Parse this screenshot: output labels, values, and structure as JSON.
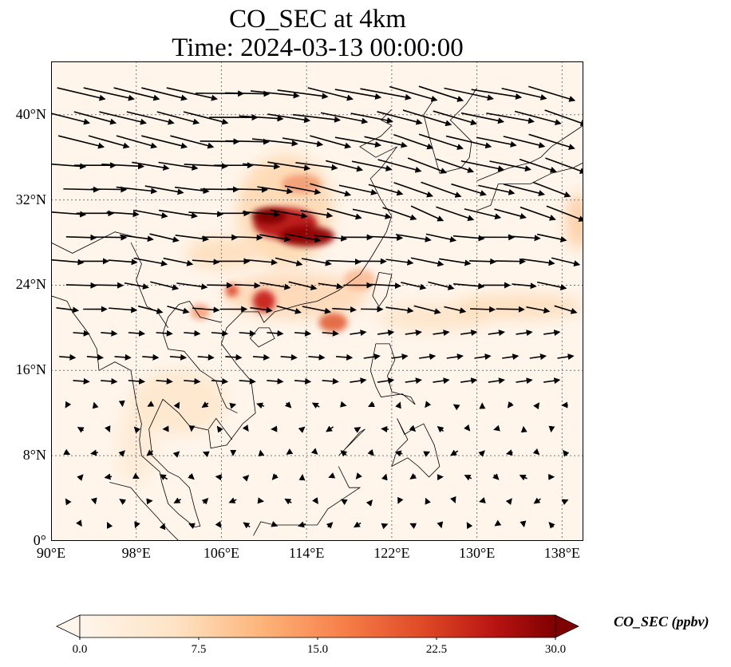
{
  "title": {
    "line1": "CO_SEC at 4km",
    "line2": "Time: 2024-03-13 00:00:00"
  },
  "map": {
    "lon_range": [
      90,
      140
    ],
    "lat_range": [
      0,
      45
    ],
    "lat_ticks": [
      {
        "v": 0,
        "label": "0°"
      },
      {
        "v": 8,
        "label": "8°N"
      },
      {
        "v": 16,
        "label": "16°N"
      },
      {
        "v": 24,
        "label": "24°N"
      },
      {
        "v": 32,
        "label": "32°N"
      },
      {
        "v": 40,
        "label": "40°N"
      }
    ],
    "lon_ticks": [
      {
        "v": 90,
        "label": "90°E"
      },
      {
        "v": 98,
        "label": "98°E"
      },
      {
        "v": 106,
        "label": "106°E"
      },
      {
        "v": 114,
        "label": "114°E"
      },
      {
        "v": 122,
        "label": "122°E"
      },
      {
        "v": 130,
        "label": "130°E"
      },
      {
        "v": 138,
        "label": "138°E"
      }
    ],
    "gridlines": "dotted",
    "coastlines": true
  },
  "colorbar": {
    "label": "CO_SEC (ppbv)",
    "range": [
      0,
      30
    ],
    "ticks": [
      "0.0",
      "7.5",
      "15.0",
      "22.5",
      "30.0"
    ],
    "extend": "both",
    "cmap_colors": [
      "#fff5eb",
      "#fdd3a5",
      "#fd9a55",
      "#e6550d",
      "#a63603",
      "#7f0000"
    ]
  },
  "concentration_features": [
    {
      "name": "central-china-plume",
      "lon": 112.5,
      "lat": 29.5,
      "value": 30
    },
    {
      "name": "south-china-hotspot",
      "lon": 110,
      "lat": 22.5,
      "value": 28
    },
    {
      "name": "luzon-strait-plume",
      "lon": 117,
      "lat": 20.5,
      "value": 18
    },
    {
      "name": "pacific-outflow-band",
      "lon": 135,
      "lat": 22,
      "value": 8
    },
    {
      "name": "indochina-burning",
      "lon": 102,
      "lat": 13,
      "value": 6
    }
  ],
  "wind_vectors": "westerly flow north of 20°N, weak variable winds over southeast Asia"
}
